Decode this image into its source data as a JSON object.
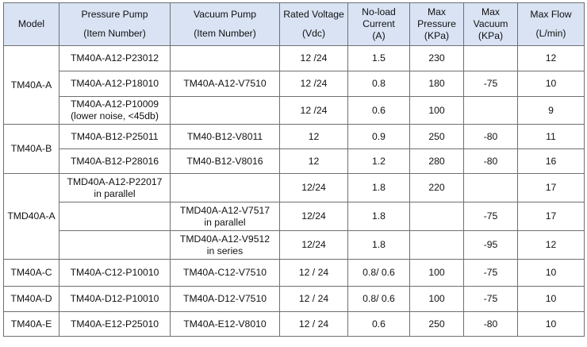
{
  "header": {
    "model": "Model",
    "pressure_pump": [
      "Pressure Pump",
      "(Item Number)"
    ],
    "vacuum_pump": [
      "Vacuum Pump",
      "(Item Number)"
    ],
    "rated_voltage": [
      "Rated Voltage",
      "(Vdc)"
    ],
    "noload_current": [
      "No-load",
      "Current",
      "(A)"
    ],
    "max_pressure": [
      "Max",
      "Pressure",
      "(KPa)"
    ],
    "max_vacuum": [
      "Max",
      "Vacuum",
      "(KPa)"
    ],
    "max_flow": [
      "Max Flow",
      "(L/min)"
    ]
  },
  "rows": [
    {
      "model": "TM40A-A",
      "pressure": [
        "TM40A-A12-P23012"
      ],
      "vacuum": [
        ""
      ],
      "voltage": "12 /24",
      "current": "1.5",
      "max_pressure": "230",
      "max_vacuum": "",
      "max_flow": "12"
    },
    {
      "pressure": [
        "TM40A-A12-P18010"
      ],
      "vacuum": [
        "TM40A-A12-V7510"
      ],
      "voltage": "12 /24",
      "current": "0.8",
      "max_pressure": "180",
      "max_vacuum": "-75",
      "max_flow": "10"
    },
    {
      "pressure": [
        "TM40A-A12-P10009",
        "(lower noise, <45db)"
      ],
      "vacuum": [
        ""
      ],
      "voltage": "12 /24",
      "current": "0.6",
      "max_pressure": "100",
      "max_vacuum": "",
      "max_flow": "9"
    },
    {
      "model": "TM40A-B",
      "pressure": [
        "TM40A-B12-P25011"
      ],
      "vacuum": [
        "TM40-B12-V8011"
      ],
      "voltage": "12",
      "current": "0.9",
      "max_pressure": "250",
      "max_vacuum": "-80",
      "max_flow": "11"
    },
    {
      "pressure": [
        "TM40A-B12-P28016"
      ],
      "vacuum": [
        "TM40-B12-V8016"
      ],
      "voltage": "12",
      "current": "1.2",
      "max_pressure": "280",
      "max_vacuum": "-80",
      "max_flow": "16"
    },
    {
      "model": "TMD40A-A",
      "pressure": [
        "TMD40A-A12-P22017",
        "in parallel"
      ],
      "vacuum": [
        ""
      ],
      "voltage": "12/24",
      "current": "1.8",
      "max_pressure": "220",
      "max_vacuum": "",
      "max_flow": "17"
    },
    {
      "pressure": [
        ""
      ],
      "vacuum": [
        "TMD40A-A12-V7517",
        "in parallel"
      ],
      "voltage": "12/24",
      "current": "1.8",
      "max_pressure": "",
      "max_vacuum": "-75",
      "max_flow": "17"
    },
    {
      "pressure": [
        ""
      ],
      "vacuum": [
        "TMD40A-A12-V9512",
        "in series"
      ],
      "voltage": "12/24",
      "current": "1.8",
      "max_pressure": "",
      "max_vacuum": "-95",
      "max_flow": "12"
    },
    {
      "model": "TM40A-C",
      "pressure": [
        "TM40A-C12-P10010"
      ],
      "vacuum": [
        "TM40A-C12-V7510"
      ],
      "voltage": "12 / 24",
      "current": "0.8/ 0.6",
      "max_pressure": "100",
      "max_vacuum": "-75",
      "max_flow": "10"
    },
    {
      "model": "TM40A-D",
      "pressure": [
        "TM40A-D12-P10010"
      ],
      "vacuum": [
        "TM40A-D12-V7510"
      ],
      "voltage": "12 / 24",
      "current": "0.8/ 0.6",
      "max_pressure": "100",
      "max_vacuum": "-75",
      "max_flow": "10"
    },
    {
      "model": "TM40A-E",
      "pressure": [
        "TM40A-E12-P25010"
      ],
      "vacuum": [
        "TM40A-E12-V8010"
      ],
      "voltage": "12 / 24",
      "current": "0.6",
      "max_pressure": "250",
      "max_vacuum": "-80",
      "max_flow": "10"
    }
  ]
}
